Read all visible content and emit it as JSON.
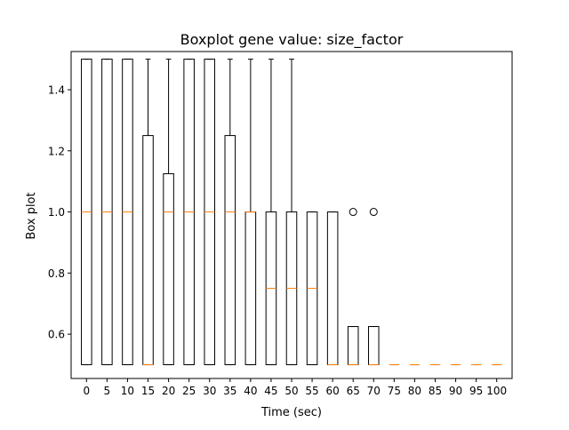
{
  "chart_data": {
    "type": "boxplot",
    "title": "Boxplot gene value: size_factor",
    "xlabel": "Time (sec)",
    "ylabel": "Box plot",
    "ylim": [
      0.455,
      1.525
    ],
    "yticks": [
      "0.6",
      "0.8",
      "1.0",
      "1.2",
      "1.4"
    ],
    "ytick_values": [
      0.6,
      0.8,
      1.0,
      1.2,
      1.4
    ],
    "categories": [
      "0",
      "5",
      "10",
      "15",
      "20",
      "25",
      "30",
      "35",
      "40",
      "45",
      "50",
      "55",
      "60",
      "65",
      "70",
      "75",
      "80",
      "85",
      "90",
      "95",
      "100"
    ],
    "boxes": [
      {
        "whislo": 0.5,
        "q1": 0.5,
        "med": 1.0,
        "q3": 1.5,
        "whishi": 1.5,
        "fliers": []
      },
      {
        "whislo": 0.5,
        "q1": 0.5,
        "med": 1.0,
        "q3": 1.5,
        "whishi": 1.5,
        "fliers": []
      },
      {
        "whislo": 0.5,
        "q1": 0.5,
        "med": 1.0,
        "q3": 1.5,
        "whishi": 1.5,
        "fliers": []
      },
      {
        "whislo": 0.5,
        "q1": 0.5,
        "med": 0.5,
        "q3": 1.25,
        "whishi": 1.5,
        "fliers": []
      },
      {
        "whislo": 0.5,
        "q1": 0.5,
        "med": 1.0,
        "q3": 1.125,
        "whishi": 1.5,
        "fliers": []
      },
      {
        "whislo": 0.5,
        "q1": 0.5,
        "med": 1.0,
        "q3": 1.5,
        "whishi": 1.5,
        "fliers": []
      },
      {
        "whislo": 0.5,
        "q1": 0.5,
        "med": 1.0,
        "q3": 1.5,
        "whishi": 1.5,
        "fliers": []
      },
      {
        "whislo": 0.5,
        "q1": 0.5,
        "med": 1.0,
        "q3": 1.25,
        "whishi": 1.5,
        "fliers": []
      },
      {
        "whislo": 0.5,
        "q1": 0.5,
        "med": 1.0,
        "q3": 1.0,
        "whishi": 1.5,
        "fliers": []
      },
      {
        "whislo": 0.5,
        "q1": 0.5,
        "med": 0.75,
        "q3": 1.0,
        "whishi": 1.5,
        "fliers": []
      },
      {
        "whislo": 0.5,
        "q1": 0.5,
        "med": 0.75,
        "q3": 1.0,
        "whishi": 1.5,
        "fliers": []
      },
      {
        "whislo": 0.5,
        "q1": 0.5,
        "med": 0.75,
        "q3": 1.0,
        "whishi": 1.0,
        "fliers": []
      },
      {
        "whislo": 0.5,
        "q1": 0.5,
        "med": 0.5,
        "q3": 1.0,
        "whishi": 1.0,
        "fliers": []
      },
      {
        "whislo": 0.5,
        "q1": 0.5,
        "med": 0.5,
        "q3": 0.625,
        "whishi": 0.625,
        "fliers": [
          1.0
        ]
      },
      {
        "whislo": 0.5,
        "q1": 0.5,
        "med": 0.5,
        "q3": 0.625,
        "whishi": 0.625,
        "fliers": [
          1.0
        ]
      },
      {
        "whislo": 0.5,
        "q1": 0.5,
        "med": 0.5,
        "q3": 0.5,
        "whishi": 0.5,
        "fliers": []
      },
      {
        "whislo": 0.5,
        "q1": 0.5,
        "med": 0.5,
        "q3": 0.5,
        "whishi": 0.5,
        "fliers": []
      },
      {
        "whislo": 0.5,
        "q1": 0.5,
        "med": 0.5,
        "q3": 0.5,
        "whishi": 0.5,
        "fliers": []
      },
      {
        "whislo": 0.5,
        "q1": 0.5,
        "med": 0.5,
        "q3": 0.5,
        "whishi": 0.5,
        "fliers": []
      },
      {
        "whislo": 0.5,
        "q1": 0.5,
        "med": 0.5,
        "q3": 0.5,
        "whishi": 0.5,
        "fliers": []
      },
      {
        "whislo": 0.5,
        "q1": 0.5,
        "med": 0.5,
        "q3": 0.5,
        "whishi": 0.5,
        "fliers": []
      }
    ],
    "grid": false,
    "colors": {
      "box": "#000000",
      "median": "#ff7f0e",
      "background": "#ffffff"
    }
  }
}
